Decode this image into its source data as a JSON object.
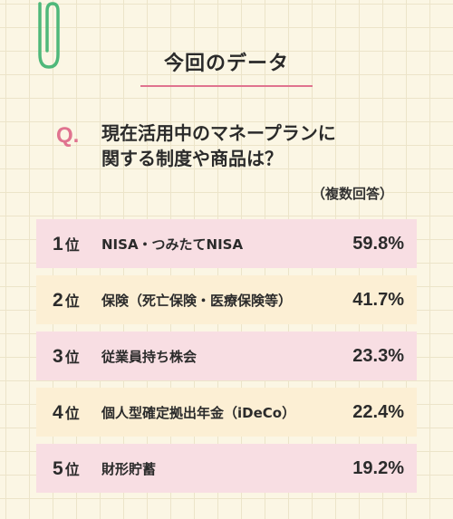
{
  "title": "今回のデータ",
  "question": {
    "mark": "Q.",
    "line1": "現在活用中のマネープランに",
    "line2": "関する制度や商品は？",
    "note": "（複数回答）"
  },
  "rank_unit": "位",
  "results": [
    {
      "rank": "1",
      "label": "NISA・つみたてNISA",
      "percent": "59.8%"
    },
    {
      "rank": "2",
      "label": "保険（死亡保険・医療保険等）",
      "percent": "41.7%"
    },
    {
      "rank": "3",
      "label": "従業員持ち株会",
      "percent": "23.3%"
    },
    {
      "rank": "4",
      "label": "個人型確定拠出年金（iDeCo）",
      "percent": "22.4%"
    },
    {
      "rank": "5",
      "label": "財形貯蓄",
      "percent": "19.2%"
    }
  ],
  "colors": {
    "accent": "#e0738f",
    "row_pink": "#f8dee3",
    "row_cream": "#fcefd4",
    "clip": "#4fb87a"
  },
  "icons": {
    "clip": "paperclip-icon"
  }
}
